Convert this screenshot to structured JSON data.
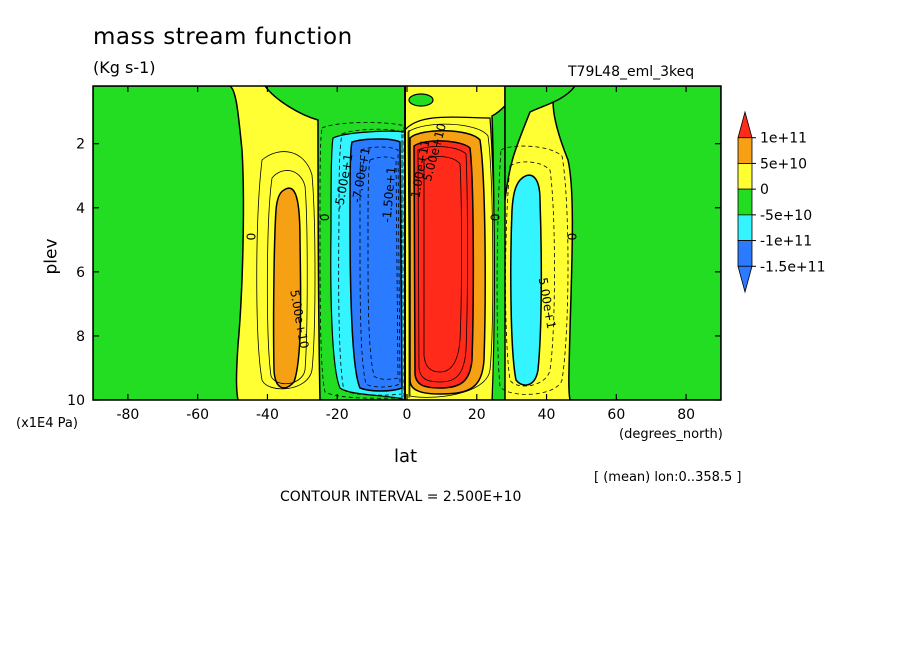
{
  "header": {
    "title": "mass stream function",
    "units": "(Kg s-1)",
    "run_name": "T79L48_eml_3keq"
  },
  "footer": {
    "y_unit": "(x1E4 Pa)",
    "x_unit": "(degrees_north)",
    "x_label": "lat",
    "y_label": "plev",
    "averaging_note": "[ (mean) lon:0..358.5 ]",
    "contour_interval": "CONTOUR INTERVAL = 2.500E+10"
  },
  "chart_data": {
    "type": "heatmap",
    "plot_kind": "filled contour",
    "xlabel": "lat",
    "ylabel": "plev",
    "xlim": [
      -90,
      90
    ],
    "ylim": [
      10,
      0.2
    ],
    "x_ticks": [
      -80,
      -60,
      -40,
      -20,
      0,
      20,
      40,
      60,
      80
    ],
    "y_ticks": [
      2,
      4,
      6,
      8,
      10
    ],
    "contour_interval": 25000000000.0,
    "legend": {
      "placement": "right",
      "labels": [
        "1e+11",
        "5e+10",
        "0",
        "-5e+10",
        "-1e+11",
        "-1.5e+11"
      ],
      "colors": [
        "#ff2a1a",
        "#f5a113",
        "#ffff33",
        "#22dd22",
        "#33f4ff",
        "#2a7bff",
        "#2a7bff"
      ],
      "bin_colors_top_to_bottom": [
        "#ff2a1a",
        "#f5a113",
        "#ffff33",
        "#22dd22",
        "#33f4ff",
        "#2a7bff",
        "#2a7bff"
      ]
    },
    "contour_labels": [
      {
        "text": "0",
        "lat": -46,
        "plev": 4.9,
        "rotate": 90
      },
      {
        "text": "0",
        "lat": -25,
        "plev": 4.3,
        "rotate": 90
      },
      {
        "text": "0",
        "lat": 24,
        "plev": 4.3,
        "rotate": 90
      },
      {
        "text": "0",
        "lat": 46,
        "plev": 4.9,
        "rotate": 90
      },
      {
        "text": "5.00e+10",
        "lat": -32,
        "plev": 7.5,
        "rotate": 80
      },
      {
        "text": "-5.00e+1",
        "lat": -17,
        "plev": 3.2,
        "rotate": -80
      },
      {
        "text": "-7.00e+1",
        "lat": -12,
        "plev": 3.0,
        "rotate": -80
      },
      {
        "text": "-1.50e+1",
        "lat": -4,
        "plev": 3.6,
        "rotate": -85
      },
      {
        "text": "1.00e+11",
        "lat": 5,
        "plev": 2.8,
        "rotate": -80
      },
      {
        "text": "5.00e+10",
        "lat": 9,
        "plev": 2.3,
        "rotate": -75
      },
      {
        "text": "5.00e+1",
        "lat": 39,
        "plev": 7.0,
        "rotate": 80
      }
    ],
    "regions": [
      {
        "value_range": "0 to 5e+10",
        "color": "#ffff33",
        "description": "background positive"
      },
      {
        "value_range": "-5e+10 to 0",
        "color": "#22dd22",
        "description": "polar / subtropical negative"
      },
      {
        "value_range": "5e+10 to 1e+11",
        "color": "#f5a113",
        "lat_center": -33,
        "plev_range": [
          3.3,
          9.5
        ]
      },
      {
        "value_range": "< -1.5e+11",
        "color": "#2a7bff",
        "lat_center": -9,
        "plev_range": [
          2.0,
          9.6
        ]
      },
      {
        "value_range": "> 1e+11",
        "color": "#ff2a1a",
        "lat_center": 10,
        "plev_range": [
          1.5,
          9.6
        ]
      },
      {
        "value_range": "-1e+11 to -5e+10",
        "color": "#33f4ff",
        "lat_center": 33,
        "plev_range": [
          3.3,
          9.5
        ]
      }
    ]
  }
}
